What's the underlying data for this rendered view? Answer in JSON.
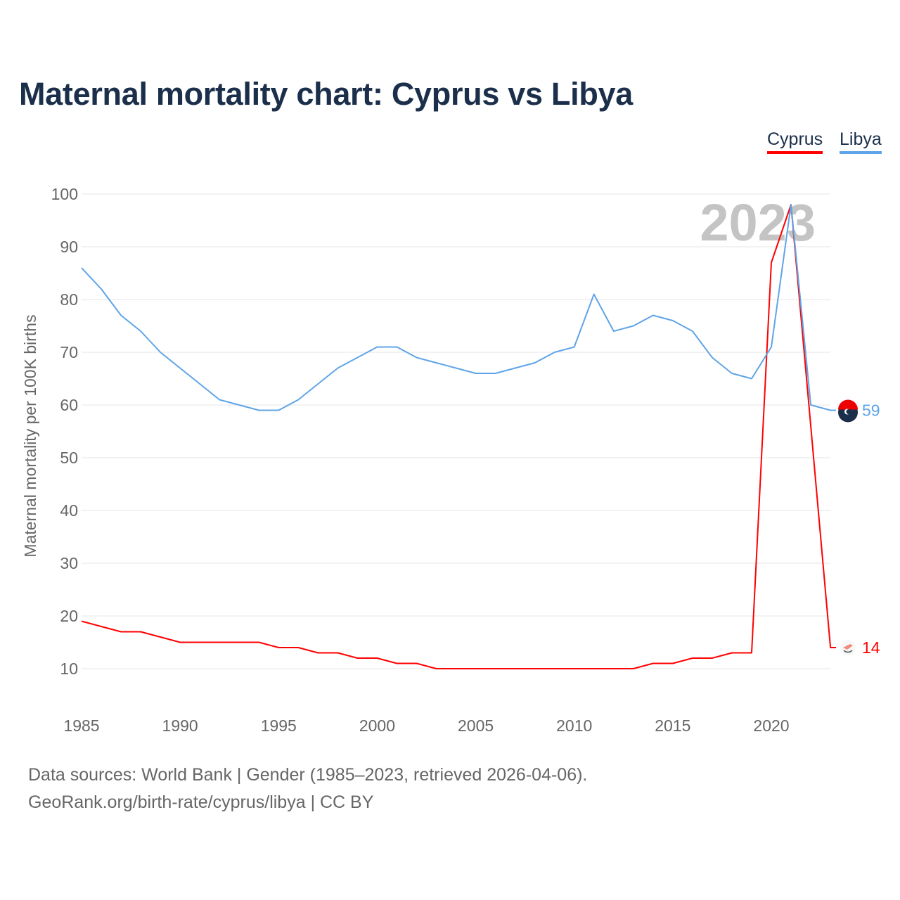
{
  "title": "Maternal mortality chart: Cyprus vs Libya",
  "footer": {
    "line1": "Data sources: World Bank | Gender (1985–2023, retrieved 2026-04-06).",
    "line2": "GeoRank.org/birth-rate/cyprus/libya | CC BY"
  },
  "chart_data": {
    "type": "line",
    "title": "Maternal mortality chart: Cyprus vs Libya",
    "xlabel": "",
    "ylabel": "Maternal mortality per 100K births",
    "year_watermark": "2023",
    "xlim": [
      1985,
      2023
    ],
    "ylim": [
      0,
      100
    ],
    "xticks": [
      1985,
      1990,
      1995,
      2000,
      2005,
      2010,
      2015,
      2020
    ],
    "yticks": [
      10,
      20,
      30,
      40,
      50,
      60,
      70,
      80,
      90,
      100
    ],
    "grid": true,
    "legend_position": "top-right",
    "x": [
      1985,
      1986,
      1987,
      1988,
      1989,
      1990,
      1991,
      1992,
      1993,
      1994,
      1995,
      1996,
      1997,
      1998,
      1999,
      2000,
      2001,
      2002,
      2003,
      2004,
      2005,
      2006,
      2007,
      2008,
      2009,
      2010,
      2011,
      2012,
      2013,
      2014,
      2015,
      2016,
      2017,
      2018,
      2019,
      2020,
      2021,
      2022,
      2023
    ],
    "series": [
      {
        "name": "Cyprus",
        "color": "#ff0000",
        "end_label": "14",
        "flag": "cyprus-flag",
        "values": [
          19,
          18,
          17,
          17,
          16,
          15,
          15,
          15,
          15,
          15,
          14,
          14,
          13,
          13,
          12,
          12,
          11,
          11,
          10,
          10,
          10,
          10,
          10,
          10,
          10,
          10,
          10,
          10,
          10,
          11,
          11,
          12,
          12,
          13,
          13,
          87,
          98,
          56,
          14
        ]
      },
      {
        "name": "Libya",
        "color": "#5fa4e8",
        "end_label": "59",
        "flag": "libya-flag",
        "values": [
          86,
          82,
          77,
          74,
          70,
          67,
          64,
          61,
          60,
          59,
          59,
          61,
          64,
          67,
          69,
          71,
          71,
          69,
          68,
          67,
          66,
          66,
          67,
          68,
          70,
          71,
          81,
          74,
          75,
          77,
          76,
          74,
          69,
          66,
          65,
          71,
          98,
          60,
          59
        ]
      }
    ]
  }
}
